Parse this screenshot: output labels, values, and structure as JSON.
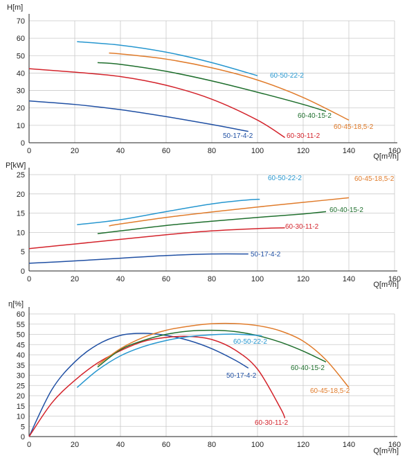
{
  "chart_data": [
    {
      "type": "line",
      "ylabel": "H[m]",
      "xlabel": "Q[m³/h]",
      "xlim": [
        0,
        160
      ],
      "ylim": [
        0,
        70
      ],
      "xticks": [
        0,
        20,
        40,
        60,
        80,
        100,
        120,
        140,
        160
      ],
      "yticks": [
        0,
        10,
        20,
        30,
        40,
        50,
        60,
        70
      ],
      "grid": true,
      "series": [
        {
          "name": "50-17-4-2",
          "color": "#1f4fa3",
          "x": [
            0,
            20,
            40,
            60,
            80,
            96
          ],
          "y": [
            24,
            22,
            19,
            15,
            10.5,
            6.5
          ]
        },
        {
          "name": "60-30-11-2",
          "color": "#d3222a",
          "x": [
            0,
            20,
            40,
            60,
            80,
            100,
            112
          ],
          "y": [
            42.5,
            40.5,
            38,
            33,
            25,
            13,
            3
          ]
        },
        {
          "name": "60-40-15-2",
          "color": "#1e6e2c",
          "x": [
            30,
            40,
            60,
            80,
            100,
            120,
            130
          ],
          "y": [
            46,
            45,
            41,
            35.5,
            29,
            22,
            18
          ]
        },
        {
          "name": "60-45-18,5-2",
          "color": "#e07b2a",
          "x": [
            35,
            40,
            60,
            80,
            100,
            120,
            140
          ],
          "y": [
            51.5,
            51,
            48,
            43,
            36,
            26,
            13
          ]
        },
        {
          "name": "60-50-22-2",
          "color": "#2596cf",
          "x": [
            21,
            40,
            60,
            80,
            100
          ],
          "y": [
            58,
            56,
            52,
            46,
            38.5
          ]
        }
      ]
    },
    {
      "type": "line",
      "ylabel": "P[kW]",
      "xlabel": "Q[m³/h]",
      "xlim": [
        0,
        160
      ],
      "ylim": [
        0,
        25
      ],
      "xticks": [
        0,
        20,
        40,
        60,
        80,
        100,
        120,
        140,
        160
      ],
      "yticks": [
        0,
        5,
        10,
        15,
        20,
        25
      ],
      "grid": true,
      "series": [
        {
          "name": "50-17-4-2",
          "color": "#1f4fa3",
          "x": [
            0,
            20,
            40,
            60,
            80,
            96
          ],
          "y": [
            2,
            2.6,
            3.3,
            4,
            4.4,
            4.4
          ]
        },
        {
          "name": "60-30-11-2",
          "color": "#d3222a",
          "x": [
            0,
            20,
            40,
            60,
            80,
            100,
            112
          ],
          "y": [
            5.8,
            7,
            8.2,
            9.4,
            10.4,
            11,
            11.2
          ]
        },
        {
          "name": "60-40-15-2",
          "color": "#1e6e2c",
          "x": [
            30,
            40,
            60,
            80,
            100,
            120,
            130
          ],
          "y": [
            9.7,
            10.4,
            11.8,
            12.9,
            13.9,
            14.8,
            15.4
          ]
        },
        {
          "name": "60-45-18,5-2",
          "color": "#e07b2a",
          "x": [
            35,
            40,
            60,
            80,
            100,
            120,
            140
          ],
          "y": [
            11.7,
            12.2,
            13.9,
            15.3,
            16.6,
            17.8,
            19
          ]
        },
        {
          "name": "60-50-22-2",
          "color": "#2596cf",
          "x": [
            21,
            40,
            60,
            80,
            95,
            101
          ],
          "y": [
            12,
            13.3,
            15.4,
            17.4,
            18.4,
            18.6
          ]
        }
      ]
    },
    {
      "type": "line",
      "ylabel": "η[%]",
      "xlabel": "Q[m³/h]",
      "xlim": [
        0,
        160
      ],
      "ylim": [
        0,
        60
      ],
      "xticks": [
        0,
        20,
        40,
        60,
        80,
        100,
        120,
        140,
        160
      ],
      "yticks": [
        0,
        5,
        10,
        15,
        20,
        25,
        30,
        35,
        40,
        45,
        50,
        55,
        60
      ],
      "grid": true,
      "series": [
        {
          "name": "50-17-4-2",
          "color": "#1f4fa3",
          "x": [
            0,
            10,
            20,
            30,
            40,
            50,
            60,
            70,
            80,
            90,
            96
          ],
          "y": [
            0,
            23,
            36.5,
            45,
            49.5,
            50.5,
            49.5,
            47,
            43,
            37.5,
            33.5
          ]
        },
        {
          "name": "60-30-11-2",
          "color": "#d3222a",
          "x": [
            0,
            10,
            20,
            30,
            40,
            50,
            60,
            70,
            80,
            90,
            100,
            110,
            112
          ],
          "y": [
            0,
            16.5,
            27.5,
            36,
            42,
            46.5,
            48.5,
            49,
            47.5,
            42.5,
            33,
            14,
            9
          ]
        },
        {
          "name": "60-40-15-2",
          "color": "#1e6e2c",
          "x": [
            30,
            40,
            50,
            60,
            70,
            80,
            90,
            100,
            110,
            120,
            130
          ],
          "y": [
            34,
            42.5,
            47,
            50,
            51.6,
            52,
            51.4,
            49.4,
            46.2,
            41.8,
            36.5
          ]
        },
        {
          "name": "60-45-18,5-2",
          "color": "#e07b2a",
          "x": [
            30,
            40,
            50,
            60,
            70,
            80,
            90,
            100,
            110,
            120,
            130,
            140
          ],
          "y": [
            35,
            43,
            48.5,
            52,
            54,
            55.2,
            55.3,
            54.3,
            51.7,
            46.7,
            37.5,
            24
          ]
        },
        {
          "name": "60-50-22-2",
          "color": "#2596cf",
          "x": [
            21,
            30,
            40,
            50,
            60,
            70,
            80,
            90,
            100,
            102
          ],
          "y": [
            24,
            32.5,
            39.5,
            44,
            47,
            48.9,
            49.8,
            50.1,
            49.5,
            49.1
          ]
        }
      ]
    }
  ]
}
